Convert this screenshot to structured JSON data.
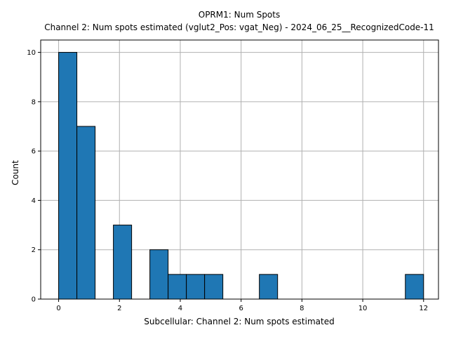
{
  "chart_data": {
    "type": "bar",
    "title": "OPRM1: Num Spots",
    "subtitle": "Channel 2: Num spots estimated (vglut2_Pos: vgat_Neg) - 2024_06_25__RecognizedCode-11",
    "xlabel": "Subcellular: Channel 2: Num spots estimated",
    "ylabel": "Count",
    "xlim": [
      -0.59,
      12.49
    ],
    "ylim": [
      0,
      10.5
    ],
    "x_ticks": [
      0,
      2,
      4,
      6,
      8,
      10,
      12
    ],
    "y_ticks": [
      0,
      2,
      4,
      6,
      8,
      10
    ],
    "grid": true,
    "bar_color": "#1f77b4",
    "edge_color": "#000000",
    "bins": [
      {
        "x0": 0.0,
        "x1": 0.6,
        "value": 10
      },
      {
        "x0": 0.6,
        "x1": 1.2,
        "value": 7
      },
      {
        "x0": 1.2,
        "x1": 1.8,
        "value": 0
      },
      {
        "x0": 1.8,
        "x1": 2.4,
        "value": 3
      },
      {
        "x0": 2.4,
        "x1": 3.0,
        "value": 0
      },
      {
        "x0": 3.0,
        "x1": 3.6,
        "value": 2
      },
      {
        "x0": 3.6,
        "x1": 4.2,
        "value": 1
      },
      {
        "x0": 4.2,
        "x1": 4.8,
        "value": 1
      },
      {
        "x0": 4.8,
        "x1": 5.4,
        "value": 1
      },
      {
        "x0": 5.4,
        "x1": 6.0,
        "value": 0
      },
      {
        "x0": 6.0,
        "x1": 6.6,
        "value": 0
      },
      {
        "x0": 6.6,
        "x1": 7.2,
        "value": 1
      },
      {
        "x0": 7.2,
        "x1": 7.8,
        "value": 0
      },
      {
        "x0": 7.8,
        "x1": 8.4,
        "value": 0
      },
      {
        "x0": 8.4,
        "x1": 9.0,
        "value": 0
      },
      {
        "x0": 9.0,
        "x1": 9.6,
        "value": 0
      },
      {
        "x0": 9.6,
        "x1": 10.2,
        "value": 0
      },
      {
        "x0": 10.2,
        "x1": 10.8,
        "value": 0
      },
      {
        "x0": 10.8,
        "x1": 11.4,
        "value": 0
      },
      {
        "x0": 11.4,
        "x1": 12.0,
        "value": 1
      }
    ]
  }
}
